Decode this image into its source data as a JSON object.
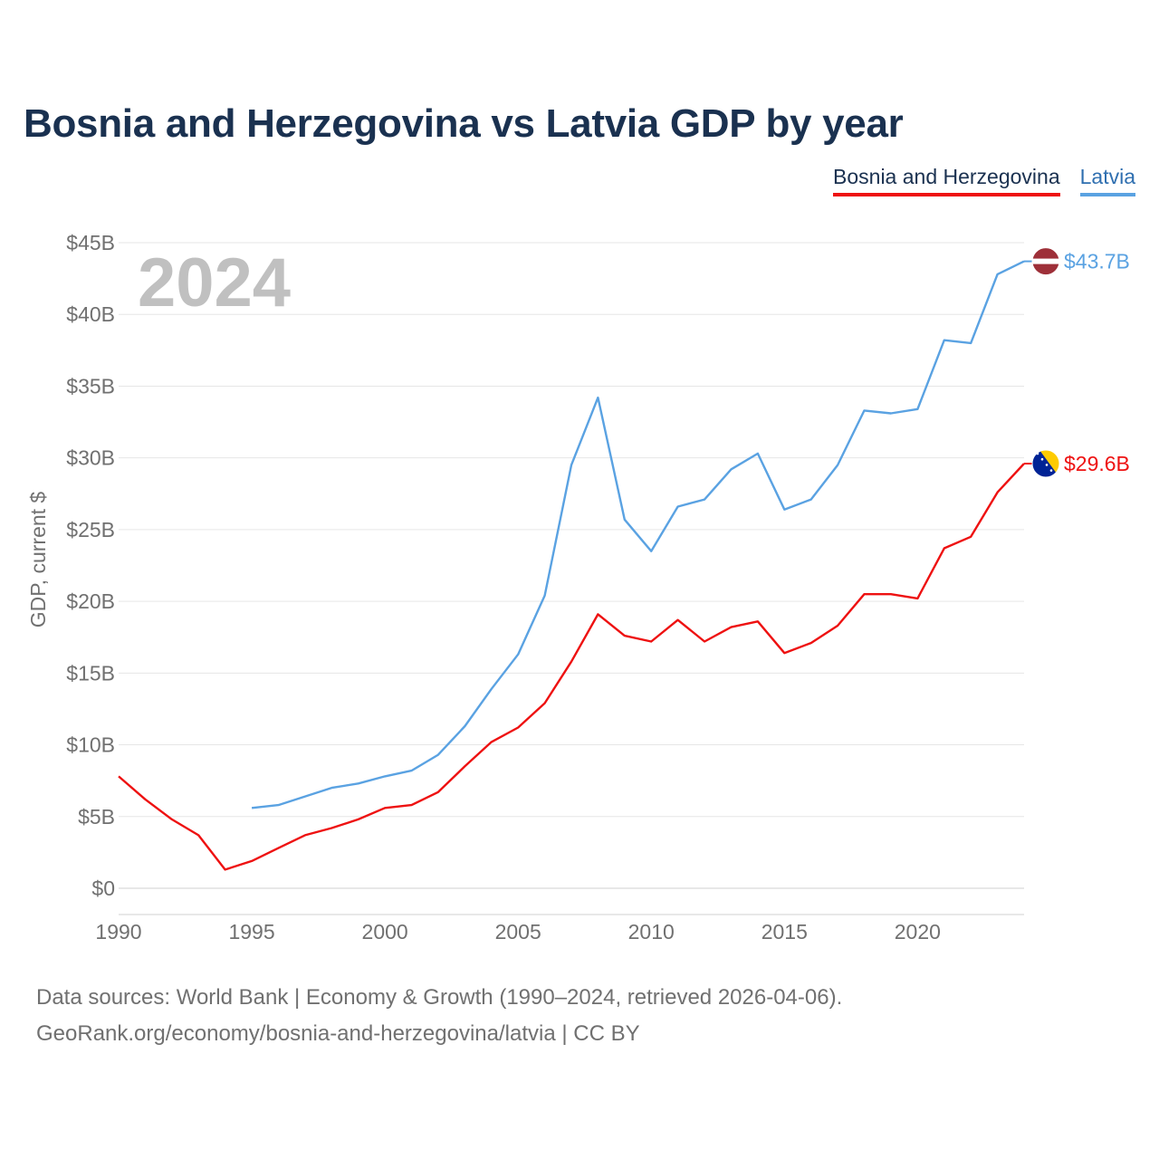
{
  "title": "Bosnia and Herzegovina vs Latvia GDP by year",
  "legend": [
    {
      "label": "Bosnia and Herzegovina",
      "color": "#ee1111"
    },
    {
      "label": "Latvia",
      "color": "#5aa2e2"
    }
  ],
  "year_label": "2024",
  "footer": {
    "line1": "Data sources: World Bank | Economy & Growth (1990–2024, retrieved 2026-04-06).",
    "line2": "GeoRank.org/economy/bosnia-and-herzegovina/latvia | CC BY"
  },
  "chart_data": {
    "type": "line",
    "title": "Bosnia and Herzegovina vs Latvia GDP by year",
    "xlabel": "",
    "ylabel": "GDP, current $",
    "xlim": [
      1990,
      2024
    ],
    "ylim": [
      0,
      45
    ],
    "x_ticks": [
      1990,
      1995,
      2000,
      2005,
      2010,
      2015,
      2020
    ],
    "x_tick_labels": [
      "1990",
      "1995",
      "2000",
      "2005",
      "2010",
      "2015",
      "2020"
    ],
    "y_ticks": [
      0,
      5,
      10,
      15,
      20,
      25,
      30,
      35,
      40,
      45
    ],
    "y_tick_labels": [
      "$0",
      "$5B",
      "$10B",
      "$15B",
      "$20B",
      "$25B",
      "$30B",
      "$35B",
      "$40B",
      "$45B"
    ],
    "grid": true,
    "legend_position": "top-right",
    "series": [
      {
        "name": "Bosnia and Herzegovina",
        "color": "#ee1111",
        "end_label": "$29.6B",
        "x": [
          1990,
          1991,
          1992,
          1993,
          1994,
          1995,
          1996,
          1997,
          1998,
          1999,
          2000,
          2001,
          2002,
          2003,
          2004,
          2005,
          2006,
          2007,
          2008,
          2009,
          2010,
          2011,
          2012,
          2013,
          2014,
          2015,
          2016,
          2017,
          2018,
          2019,
          2020,
          2021,
          2022,
          2023,
          2024
        ],
        "values": [
          7.8,
          6.2,
          4.8,
          3.7,
          1.3,
          1.9,
          2.8,
          3.7,
          4.2,
          4.8,
          5.6,
          5.8,
          6.7,
          8.5,
          10.2,
          11.2,
          12.9,
          15.8,
          19.1,
          17.6,
          17.2,
          18.7,
          17.2,
          18.2,
          18.6,
          16.4,
          17.1,
          18.3,
          20.5,
          20.5,
          20.2,
          23.7,
          24.5,
          27.6,
          29.6
        ]
      },
      {
        "name": "Latvia",
        "color": "#5aa2e2",
        "end_label": "$43.7B",
        "x": [
          1995,
          1996,
          1997,
          1998,
          1999,
          2000,
          2001,
          2002,
          2003,
          2004,
          2005,
          2006,
          2007,
          2008,
          2009,
          2010,
          2011,
          2012,
          2013,
          2014,
          2015,
          2016,
          2017,
          2018,
          2019,
          2020,
          2021,
          2022,
          2023,
          2024
        ],
        "values": [
          5.6,
          5.8,
          6.4,
          7.0,
          7.3,
          7.8,
          8.2,
          9.3,
          11.3,
          13.9,
          16.3,
          20.4,
          29.5,
          34.2,
          25.7,
          23.5,
          26.6,
          27.1,
          29.2,
          30.3,
          26.4,
          27.1,
          29.5,
          33.3,
          33.1,
          33.4,
          38.2,
          38.0,
          42.8,
          43.7
        ]
      }
    ]
  }
}
